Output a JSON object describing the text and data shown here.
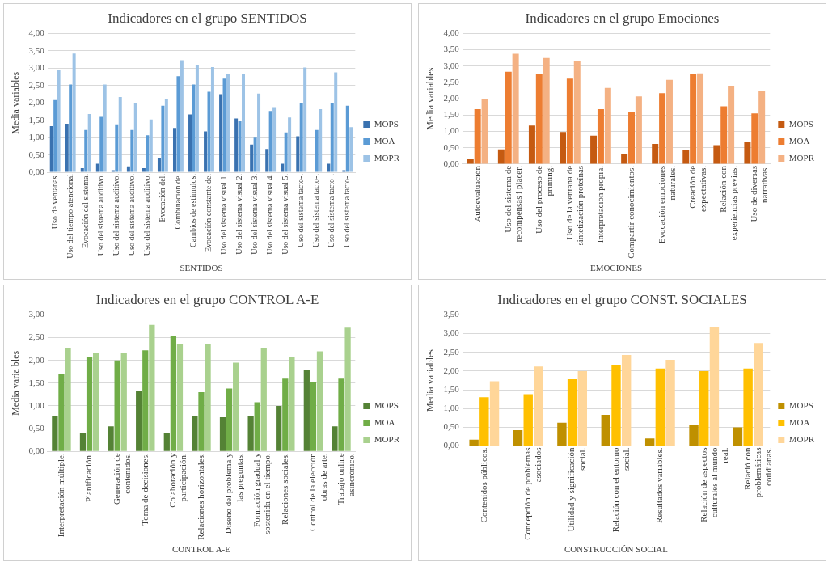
{
  "chart_data": [
    {
      "type": "bar",
      "title": "Indicadores en el grupo SENTIDOS",
      "xlabel": "SENTIDOS",
      "ylabel": "Media variables",
      "legend": "right",
      "grid": "y",
      "categories": [
        "Uso de ventanas.",
        "Uso del tiempo atencional",
        "Evocación del sistema.",
        "Uso del sistema auditivo.",
        "Uso del sistema auditivo.",
        "Uso del sistema auditivo.",
        "Uso del sistema auditivo.",
        "Evocación del.",
        "Combinación de.",
        "Cambios de estímulos.",
        "Evocación constante de.",
        "Uso del sistema visual 1.",
        "Uso del sistema visual 2.",
        "Uso del sistema visual 3.",
        "Uso del sistema visual 4.",
        "Uso del sistema visual 5.",
        "Uso del sistema tacto-.",
        "Uso del sistema tacto-.",
        "Uso del sistema tacto-.",
        "Uso del sistema tacto-."
      ],
      "series": [
        {
          "name": "MOPS",
          "color": "#3a72b0",
          "values": [
            1.33,
            1.4,
            0.12,
            0.25,
            0.06,
            0.17,
            0.12,
            0.4,
            1.28,
            1.67,
            1.18,
            2.25,
            1.55,
            0.8,
            0.67,
            0.25,
            1.04,
            0,
            0.25,
            0.06
          ]
        },
        {
          "name": "MOA",
          "color": "#5b9bd5",
          "values": [
            2.08,
            2.53,
            1.22,
            1.6,
            1.38,
            1.22,
            1.07,
            1.92,
            2.77,
            2.53,
            2.32,
            2.7,
            1.47,
            1.0,
            1.77,
            1.15,
            2.0,
            1.22,
            2.0,
            1.92
          ]
        },
        {
          "name": "MOPR",
          "color": "#9dc3e6",
          "values": [
            2.95,
            3.42,
            1.68,
            2.53,
            2.17,
            1.98,
            1.52,
            2.12,
            3.23,
            3.08,
            3.03,
            2.83,
            2.82,
            2.27,
            1.88,
            1.58,
            3.02,
            1.82,
            2.88,
            1.3
          ]
        }
      ],
      "ylim": [
        0,
        4
      ],
      "yticks": [
        {
          "value": 0,
          "label": "0,00"
        },
        {
          "value": 0.5,
          "label": "0,50"
        },
        {
          "value": 1,
          "label": "1,00"
        },
        {
          "value": 1.5,
          "label": "1,50"
        },
        {
          "value": 2,
          "label": "2,00"
        },
        {
          "value": 2.5,
          "label": "2,50"
        },
        {
          "value": 3,
          "label": "3,00"
        },
        {
          "value": 3.5,
          "label": "3,50"
        },
        {
          "value": 4,
          "label": "4,00"
        }
      ]
    },
    {
      "type": "bar",
      "title": "Indicadores en el grupo Emociones",
      "xlabel": "EMOCIONES",
      "ylabel": "Media variables",
      "legend": "right",
      "grid": "y",
      "categories": [
        "Autoevaluación",
        "Uso del sistema de recompensas i placer.",
        "Uso del proceso de priming.",
        "Uso de la ventana de sintetización proteínas",
        "Interpretación propia.",
        "Compartir conocimientos.",
        "Evocación emociones naturales.",
        "Creación de expectativas.",
        "Relación con experiencias previas.",
        "Uso de diversas narrativas."
      ],
      "series": [
        {
          "name": "MOPS",
          "color": "#c55a11",
          "values": [
            0.15,
            0.45,
            1.18,
            0.98,
            0.87,
            0.3,
            0.62,
            0.42,
            0.58,
            0.67
          ]
        },
        {
          "name": "MOA",
          "color": "#ed7d31",
          "values": [
            1.68,
            2.83,
            2.77,
            2.62,
            1.68,
            1.6,
            2.17,
            2.77,
            1.77,
            1.55
          ]
        },
        {
          "name": "MOPR",
          "color": "#f4b183",
          "values": [
            2.0,
            3.38,
            3.25,
            3.15,
            2.33,
            2.07,
            2.58,
            2.78,
            2.4,
            2.25
          ]
        }
      ],
      "ylim": [
        0,
        4
      ],
      "yticks": [
        {
          "value": 0,
          "label": "0,00"
        },
        {
          "value": 0.5,
          "label": "0,50"
        },
        {
          "value": 1,
          "label": "1,00"
        },
        {
          "value": 1.5,
          "label": "1,50"
        },
        {
          "value": 2,
          "label": "2,00"
        },
        {
          "value": 2.5,
          "label": "2,50"
        },
        {
          "value": 3,
          "label": "3,00"
        },
        {
          "value": 3.5,
          "label": "3,50"
        },
        {
          "value": 4,
          "label": "4,00"
        }
      ]
    },
    {
      "type": "bar",
      "title": "Indicadores en el grupo CONTROL A-E",
      "xlabel": "CONTROL A-E",
      "ylabel": "Media varia bles",
      "legend": "right",
      "grid": "y",
      "categories": [
        "Interpretación múltiple.",
        "Planificación.",
        "Generación de contenidos.",
        "Toma de decisiones.",
        "Colaboración y participación.",
        "Relaciones horizontales.",
        "Diseño del problema y las preguntas.",
        "Formación gradual y sostenida en el tiempo.",
        "Relaciones sociales.",
        "Control de la elección obras de arte.",
        "Trabajo online asincrónico."
      ],
      "series": [
        {
          "name": "MOPS",
          "color": "#548235",
          "values": [
            0.78,
            0.4,
            0.55,
            1.33,
            0.4,
            0.78,
            0.75,
            0.78,
            1.0,
            1.78,
            0.55
          ]
        },
        {
          "name": "MOA",
          "color": "#70ad47",
          "values": [
            1.7,
            2.07,
            2.0,
            2.22,
            2.53,
            1.3,
            1.38,
            1.08,
            1.6,
            1.53,
            1.6
          ]
        },
        {
          "name": "MOPR",
          "color": "#a9d18e",
          "values": [
            2.28,
            2.17,
            2.17,
            2.78,
            2.35,
            2.35,
            1.95,
            2.28,
            2.07,
            2.2,
            2.72
          ]
        }
      ],
      "ylim": [
        0,
        3
      ],
      "yticks": [
        {
          "value": 0,
          "label": "0,00"
        },
        {
          "value": 0.5,
          "label": "0,50"
        },
        {
          "value": 1,
          "label": "1,00"
        },
        {
          "value": 1.5,
          "label": "1,50"
        },
        {
          "value": 2,
          "label": "2,00"
        },
        {
          "value": 2.5,
          "label": "2,50"
        },
        {
          "value": 3,
          "label": "3,00"
        }
      ]
    },
    {
      "type": "bar",
      "title": "Indicadores en el grupo CONST. SOCIALES",
      "xlabel": "CONSTRUCCIÓN SOCIAL",
      "ylabel": "Media variables",
      "legend": "right",
      "grid": "y",
      "categories": [
        "Contenidos públicos.",
        "Concepción de problemas asociados",
        "Utilidad y significación social.",
        "Relación con el entorno social.",
        "Resultados variables.",
        "Relación de aspectos culturales al mundo real.",
        "Relació con problemáticas cotidianas."
      ],
      "series": [
        {
          "name": "MOPS",
          "color": "#bf9000",
          "values": [
            0.17,
            0.42,
            0.62,
            0.83,
            0.2,
            0.57,
            0.5
          ]
        },
        {
          "name": "MOA",
          "color": "#ffc000",
          "values": [
            1.3,
            1.38,
            1.78,
            2.15,
            2.07,
            2.0,
            2.07
          ]
        },
        {
          "name": "MOPR",
          "color": "#ffd699",
          "values": [
            1.73,
            2.12,
            2.0,
            2.43,
            2.3,
            3.17,
            2.75
          ]
        }
      ],
      "ylim": [
        0,
        3.5
      ],
      "yticks": [
        {
          "value": 0,
          "label": "0,00"
        },
        {
          "value": 0.5,
          "label": "0,50"
        },
        {
          "value": 1,
          "label": "1,00"
        },
        {
          "value": 1.5,
          "label": "1,50"
        },
        {
          "value": 2,
          "label": "2,00"
        },
        {
          "value": 2.5,
          "label": "2,50"
        },
        {
          "value": 3,
          "label": "3,00"
        },
        {
          "value": 3.5,
          "label": "3,50"
        }
      ]
    }
  ]
}
